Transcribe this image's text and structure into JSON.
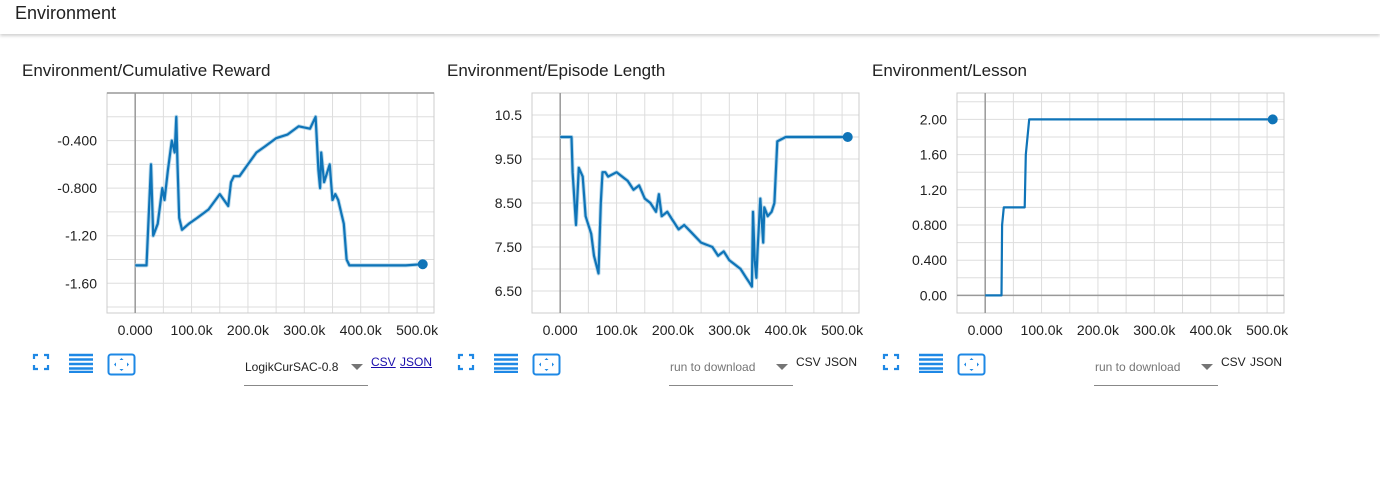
{
  "header": {
    "title": "Environment"
  },
  "colors": {
    "line": "#0f74b8",
    "raw": "#b7d8ea",
    "grid": "#dddddd",
    "axis": "#999999",
    "icon": "#1e88e5"
  },
  "charts": [
    {
      "title": "Environment/Cumulative Reward",
      "run_select": {
        "value": "LogikCurSAC-0.8",
        "placeholder": false
      },
      "csv_label": "CSV",
      "json_label": "JSON",
      "links_active": true,
      "x_ticks": [
        "0.000",
        "100.0k",
        "200.0k",
        "300.0k",
        "400.0k",
        "500.0k"
      ],
      "y_ticks": [
        "-0.400",
        "-0.800",
        "-1.20",
        "-1.60"
      ]
    },
    {
      "title": "Environment/Episode Length",
      "run_select": {
        "value": "run to download",
        "placeholder": true
      },
      "csv_label": "CSV",
      "json_label": "JSON",
      "links_active": false,
      "x_ticks": [
        "0.000",
        "100.0k",
        "200.0k",
        "300.0k",
        "400.0k",
        "500.0k"
      ],
      "y_ticks": [
        "10.5",
        "9.50",
        "8.50",
        "7.50",
        "6.50"
      ]
    },
    {
      "title": "Environment/Lesson",
      "run_select": {
        "value": "run to download",
        "placeholder": true
      },
      "csv_label": "CSV",
      "json_label": "JSON",
      "links_active": false,
      "x_ticks": [
        "0.000",
        "100.0k",
        "200.0k",
        "300.0k",
        "400.0k",
        "500.0k"
      ],
      "y_ticks": [
        "2.00",
        "1.60",
        "1.20",
        "0.800",
        "0.400",
        "0.00"
      ]
    }
  ],
  "chart_data": [
    {
      "type": "line",
      "title": "Environment/Cumulative Reward",
      "xlim": [
        -50000,
        530000
      ],
      "ylim": [
        -1.85,
        -0.0
      ],
      "x_ticks": [
        0,
        100000,
        200000,
        300000,
        400000,
        500000
      ],
      "y_ticks": [
        -0.4,
        -0.8,
        -1.2,
        -1.6
      ],
      "grid": true,
      "x": [
        0,
        20000,
        28000,
        32000,
        40000,
        48000,
        52000,
        58000,
        65000,
        70000,
        73000,
        75000,
        78000,
        83000,
        95000,
        110000,
        130000,
        150000,
        165000,
        170000,
        175000,
        185000,
        200000,
        215000,
        230000,
        250000,
        270000,
        290000,
        310000,
        320000,
        325000,
        328000,
        330000,
        335000,
        345000,
        350000,
        355000,
        360000,
        370000,
        375000,
        380000,
        400000,
        450000,
        480000,
        510000
      ],
      "y": [
        -1.45,
        -1.45,
        -0.6,
        -1.2,
        -1.1,
        -0.8,
        -0.9,
        -0.65,
        -0.4,
        -0.5,
        -0.2,
        -0.6,
        -1.05,
        -1.15,
        -1.1,
        -1.05,
        -0.98,
        -0.85,
        -0.95,
        -0.75,
        -0.7,
        -0.7,
        -0.6,
        -0.5,
        -0.45,
        -0.38,
        -0.35,
        -0.28,
        -0.3,
        -0.2,
        -0.65,
        -0.8,
        -0.5,
        -0.75,
        -0.6,
        -0.9,
        -0.85,
        -0.9,
        -1.1,
        -1.4,
        -1.45,
        -1.45,
        -1.45,
        -1.45,
        -1.44
      ]
    },
    {
      "type": "line",
      "title": "Environment/Episode Length",
      "xlim": [
        -50000,
        530000
      ],
      "ylim": [
        6.0,
        11.0
      ],
      "x_ticks": [
        0,
        100000,
        200000,
        300000,
        400000,
        500000
      ],
      "y_ticks": [
        10.5,
        9.5,
        8.5,
        7.5,
        6.5
      ],
      "grid": true,
      "x": [
        0,
        20000,
        22000,
        28000,
        33000,
        40000,
        45000,
        55000,
        60000,
        68000,
        72000,
        75000,
        80000,
        85000,
        100000,
        120000,
        130000,
        140000,
        150000,
        160000,
        170000,
        175000,
        180000,
        190000,
        200000,
        210000,
        220000,
        235000,
        250000,
        270000,
        280000,
        290000,
        300000,
        310000,
        320000,
        330000,
        335000,
        340000,
        342000,
        345000,
        348000,
        350000,
        355000,
        360000,
        362000,
        368000,
        375000,
        380000,
        385000,
        400000,
        450000,
        480000,
        510000
      ],
      "y": [
        10.0,
        10.0,
        9.2,
        8.0,
        9.3,
        9.1,
        8.2,
        7.8,
        7.3,
        6.9,
        8.5,
        9.2,
        9.2,
        9.1,
        9.2,
        9.0,
        8.8,
        8.9,
        8.6,
        8.5,
        8.3,
        8.7,
        8.2,
        8.3,
        8.1,
        7.9,
        8.0,
        7.8,
        7.6,
        7.5,
        7.3,
        7.4,
        7.2,
        7.1,
        7.0,
        6.8,
        6.7,
        6.6,
        8.3,
        7.2,
        6.8,
        7.4,
        8.6,
        7.6,
        8.4,
        8.2,
        8.3,
        8.5,
        9.9,
        10.0,
        10.0,
        10.0,
        10.0
      ]
    },
    {
      "type": "line",
      "title": "Environment/Lesson",
      "xlim": [
        -50000,
        530000
      ],
      "ylim": [
        -0.2,
        2.3
      ],
      "x_ticks": [
        0,
        100000,
        200000,
        300000,
        400000,
        500000
      ],
      "y_ticks": [
        2.0,
        1.6,
        1.2,
        0.8,
        0.4,
        0.0
      ],
      "grid": true,
      "x": [
        0,
        29000,
        30000,
        33000,
        70000,
        72000,
        78000,
        510000
      ],
      "y": [
        0.0,
        0.0,
        0.8,
        1.0,
        1.0,
        1.6,
        2.0,
        2.0
      ]
    }
  ]
}
